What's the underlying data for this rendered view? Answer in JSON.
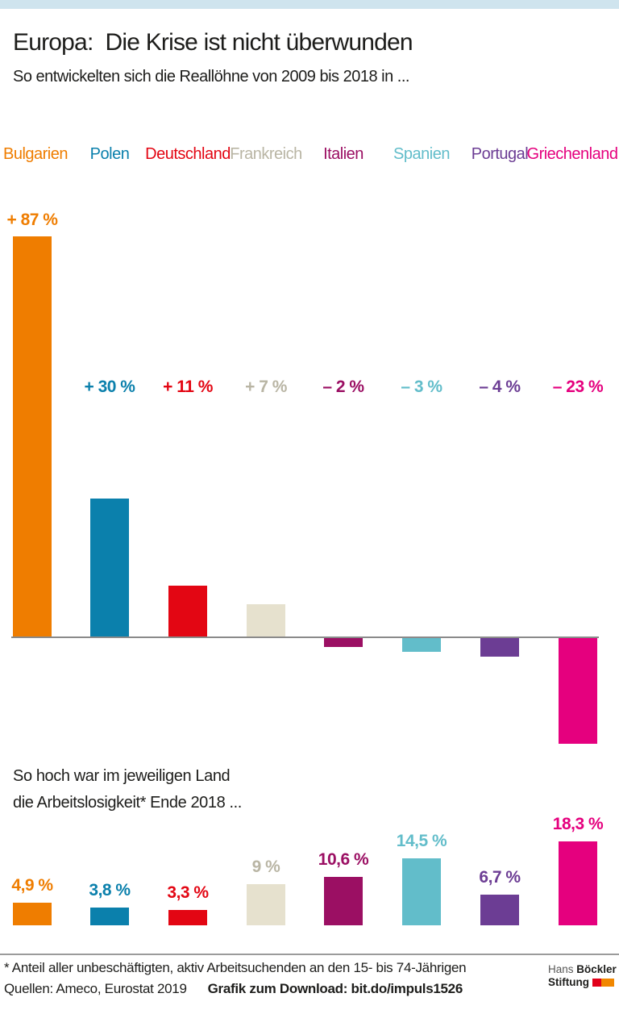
{
  "page": {
    "top_strip_color": "#cfe4ee",
    "baseline_color": "#8a8a8a",
    "divider_color": "#9b9b9b"
  },
  "header": {
    "title": "Europa:  Die Krise ist nicht überwunden",
    "subtitle": "So entwickelten sich die Reallöhne von 2009 bis 2018 in ..."
  },
  "section2": {
    "line1": "So hoch war im jeweiligen Land",
    "line2": "die Arbeitslosigkeit* Ende 2018 ..."
  },
  "chart_data": {
    "type": "bar",
    "title": "Europa: Die Krise ist nicht überwunden",
    "categories": [
      "Bulgarien",
      "Polen",
      "Deutschland",
      "Frankreich",
      "Italien",
      "Spanien",
      "Portugal",
      "Griechenland"
    ],
    "series": [
      {
        "name": "Reallohnentwicklung 2009 bis 2018 in %",
        "values": [
          87,
          30,
          11,
          7,
          -2,
          -3,
          -4,
          -23
        ],
        "data_labels": [
          "+ 87 %",
          "+ 30 %",
          "+ 11 %",
          "+ 7 %",
          "– 2 %",
          "– 3 %",
          "– 4 %",
          "– 23 %"
        ]
      },
      {
        "name": "Arbeitslosigkeit Ende 2018 in %",
        "values": [
          4.9,
          3.8,
          3.3,
          9,
          10.6,
          14.5,
          6.7,
          18.3
        ],
        "data_labels": [
          "4,9 %",
          "3,8 %",
          "3,3 %",
          "9 %",
          "10,6 %",
          "14,5 %",
          "6,7 %",
          "18,3 %"
        ]
      }
    ],
    "category_colors": {
      "text": [
        "#ef7d00",
        "#0b80ac",
        "#e30613",
        "#b9b5a4",
        "#9b0f63",
        "#62bdca",
        "#6c3d94",
        "#e5007e"
      ],
      "bar": [
        "#ef7d00",
        "#0b80ac",
        "#e30613",
        "#e6e1ce",
        "#9b0f63",
        "#62bdca",
        "#6c3d94",
        "#e5007e"
      ]
    },
    "unit": "%",
    "grid": false,
    "legend": "none",
    "baseline": 0
  },
  "footer": {
    "footnote": "* Anteil aller unbeschäftigten, aktiv Arbeitsuchenden an den 15- bis 74-Jährigen",
    "sources": "Quellen: Ameco, Eurostat 2019",
    "download": "Grafik zum Download: bit.do/impuls1526",
    "logo": {
      "word1": "Hans",
      "word2": "Böckler",
      "word3": "Stiftung",
      "square1_color": "#e2001a",
      "square2_color": "#f18700"
    }
  }
}
